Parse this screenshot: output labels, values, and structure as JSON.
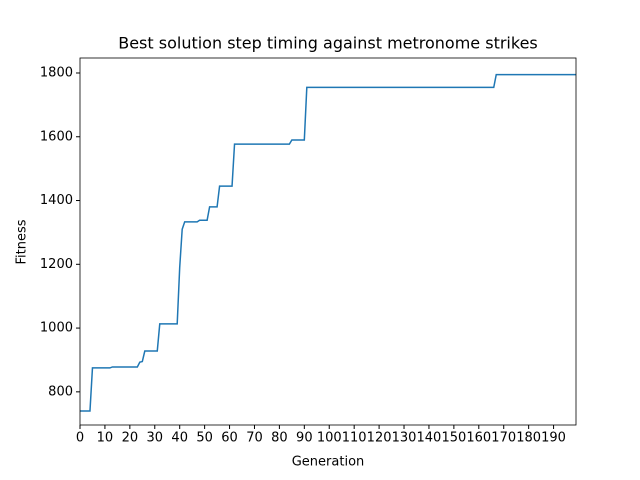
{
  "chart_data": {
    "type": "line",
    "title": "Best solution step timing against metronome strikes",
    "x_label": "Generation",
    "y_label": "Fitness",
    "x": [
      0,
      4,
      5,
      12,
      13,
      23,
      24,
      25,
      26,
      31,
      32,
      39,
      40,
      41,
      42,
      47,
      48,
      51,
      52,
      55,
      56,
      61,
      62,
      84,
      85,
      90,
      91,
      166,
      167,
      199
    ],
    "series": [
      {
        "color": "#1f77b4",
        "values": [
          740,
          740,
          875,
          875,
          878,
          878,
          893,
          895,
          928,
          928,
          1013,
          1013,
          1190,
          1310,
          1333,
          1333,
          1338,
          1338,
          1380,
          1380,
          1445,
          1445,
          1577,
          1577,
          1590,
          1590,
          1755,
          1755,
          1795,
          1795
        ]
      }
    ],
    "xlim": [
      0,
      199
    ],
    "ylim": [
      696,
      1847
    ],
    "xticks": [
      0,
      10,
      20,
      30,
      40,
      50,
      60,
      70,
      80,
      90,
      100,
      110,
      120,
      130,
      140,
      150,
      160,
      170,
      180,
      190
    ],
    "yticks": [
      800,
      1000,
      1200,
      1400,
      1600,
      1800
    ],
    "grid": false
  }
}
